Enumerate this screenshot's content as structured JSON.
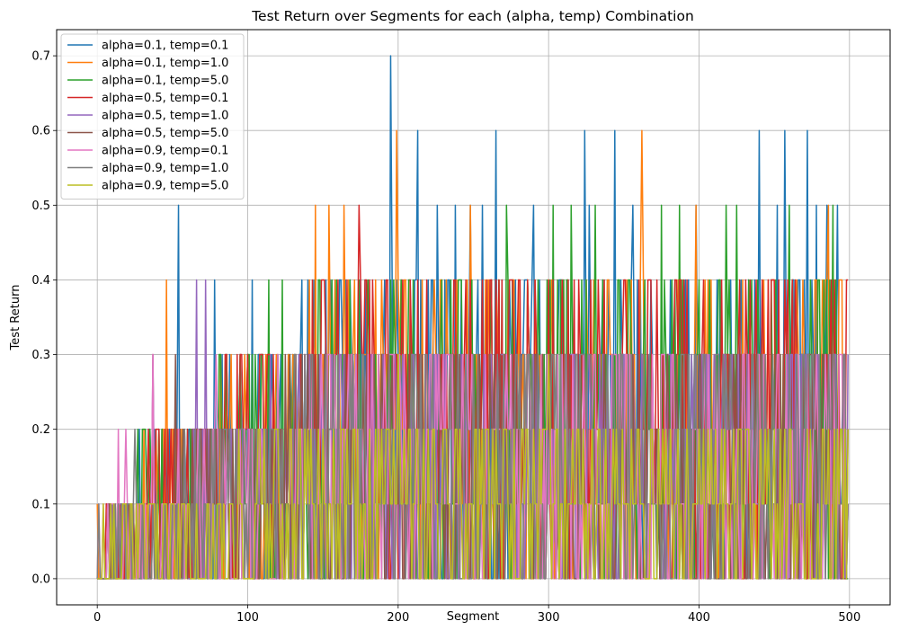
{
  "chart_data": {
    "type": "line",
    "title": "Test Return over Segments for each (alpha, temp) Combination",
    "xlabel": "Segment",
    "ylabel": "Test Return",
    "xlim": [
      -27,
      527
    ],
    "ylim": [
      -0.035,
      0.735
    ],
    "x_ticks": [
      0,
      100,
      200,
      300,
      400,
      500
    ],
    "y_ticks": [
      0.0,
      0.1,
      0.2,
      0.3,
      0.4,
      0.5,
      0.6,
      0.7
    ],
    "grid": true,
    "legend_position": "upper-left",
    "x_range": [
      0,
      499
    ],
    "series": [
      {
        "name": "alpha=0.1, temp=0.1",
        "color": "#1f77b4",
        "spikes": [
          [
            54,
            0.5
          ],
          [
            78,
            0.4
          ],
          [
            103,
            0.4
          ],
          [
            195,
            0.7
          ],
          [
            213,
            0.6
          ],
          [
            226,
            0.5
          ],
          [
            238,
            0.5
          ],
          [
            248,
            0.5
          ],
          [
            256,
            0.5
          ],
          [
            265,
            0.6
          ],
          [
            290,
            0.5
          ],
          [
            324,
            0.6
          ],
          [
            327,
            0.5
          ],
          [
            344,
            0.6
          ],
          [
            356,
            0.5
          ],
          [
            398,
            0.5
          ],
          [
            440,
            0.6
          ],
          [
            452,
            0.5
          ],
          [
            457,
            0.6
          ],
          [
            472,
            0.6
          ],
          [
            478,
            0.5
          ],
          [
            485,
            0.5
          ],
          [
            492,
            0.5
          ]
        ],
        "base": [
          0.0,
          0.4
        ]
      },
      {
        "name": "alpha=0.1, temp=1.0",
        "color": "#ff7f0e",
        "spikes": [
          [
            46,
            0.4
          ],
          [
            145,
            0.5
          ],
          [
            154,
            0.5
          ],
          [
            164,
            0.5
          ],
          [
            199,
            0.6
          ],
          [
            248,
            0.5
          ],
          [
            362,
            0.6
          ],
          [
            398,
            0.5
          ],
          [
            486,
            0.5
          ]
        ],
        "base": [
          0.0,
          0.4
        ]
      },
      {
        "name": "alpha=0.1, temp=5.0",
        "color": "#2ca02c",
        "spikes": [
          [
            114,
            0.4
          ],
          [
            123,
            0.4
          ],
          [
            208,
            0.4
          ],
          [
            272,
            0.5
          ],
          [
            303,
            0.5
          ],
          [
            315,
            0.5
          ],
          [
            331,
            0.5
          ],
          [
            375,
            0.5
          ],
          [
            387,
            0.5
          ],
          [
            418,
            0.5
          ],
          [
            425,
            0.5
          ],
          [
            460,
            0.5
          ],
          [
            489,
            0.5
          ]
        ],
        "base": [
          0.0,
          0.4
        ]
      },
      {
        "name": "alpha=0.5, temp=0.1",
        "color": "#d62728",
        "spikes": [
          [
            37,
            0.3
          ],
          [
            174,
            0.5
          ],
          [
            248,
            0.4
          ],
          [
            360,
            0.4
          ],
          [
            498,
            0.4
          ]
        ],
        "base": [
          0.0,
          0.4
        ]
      },
      {
        "name": "alpha=0.5, temp=1.0",
        "color": "#9467bd",
        "spikes": [
          [
            37,
            0.3
          ],
          [
            66,
            0.4
          ],
          [
            72,
            0.4
          ],
          [
            115,
            0.3
          ],
          [
            190,
            0.3
          ]
        ],
        "base": [
          0.0,
          0.3
        ]
      },
      {
        "name": "alpha=0.5, temp=5.0",
        "color": "#8c564b",
        "spikes": [
          [
            52,
            0.3
          ],
          [
            140,
            0.3
          ],
          [
            235,
            0.3
          ],
          [
            330,
            0.3
          ],
          [
            420,
            0.3
          ]
        ],
        "base": [
          0.0,
          0.3
        ]
      },
      {
        "name": "alpha=0.9, temp=0.1",
        "color": "#e377c2",
        "spikes": [
          [
            14,
            0.2
          ],
          [
            19,
            0.2
          ],
          [
            37,
            0.3
          ],
          [
            79,
            0.3
          ],
          [
            120,
            0.3
          ]
        ],
        "base": [
          0.0,
          0.3
        ]
      },
      {
        "name": "alpha=0.9, temp=1.0",
        "color": "#7f7f7f",
        "spikes": [
          [
            1,
            0.1
          ],
          [
            25,
            0.2
          ],
          [
            160,
            0.3
          ],
          [
            250,
            0.3
          ],
          [
            470,
            0.3
          ]
        ],
        "base": [
          0.0,
          0.3
        ]
      },
      {
        "name": "alpha=0.9, temp=5.0",
        "color": "#bcbd22",
        "spikes": [
          [
            94,
            0.2
          ],
          [
            200,
            0.3
          ],
          [
            300,
            0.3
          ],
          [
            499,
            0.2
          ]
        ],
        "base": [
          0.0,
          0.2
        ]
      }
    ]
  }
}
